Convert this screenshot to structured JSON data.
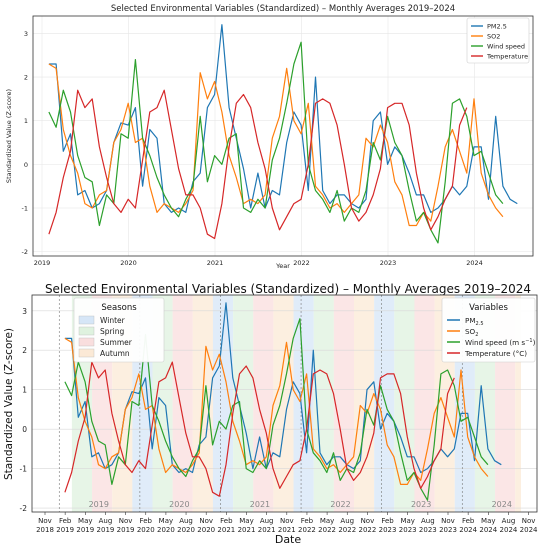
{
  "chart_data": [
    {
      "type": "line",
      "title": "Selected Environmental Variables (Standardized) – Monthly Averages 2019–2024",
      "xlabel": "Year",
      "ylabel": "Standardized Value (Z-score)",
      "x_ticks": [
        "2019",
        "2020",
        "2021",
        "2022",
        "2023",
        "2024"
      ],
      "y_ticks": [
        "-2",
        "-1",
        "0",
        "1",
        "2",
        "3"
      ],
      "ylim": [
        -2.1,
        3.4
      ],
      "x_range_years": [
        2018.92,
        2024.98
      ],
      "grid": true,
      "legend_position": "top-right",
      "legend": [
        "PM2.5",
        "SO2",
        "Wind speed",
        "Temperature"
      ],
      "series": [
        {
          "name": "PM2.5",
          "color": "#1f77b4",
          "x_start": 2019.08,
          "x_step": 0.0833,
          "values": [
            2.3,
            2.3,
            0.3,
            0.7,
            -0.7,
            -0.6,
            -1.0,
            -0.9,
            -0.6,
            0.5,
            0.95,
            0.9,
            1.3,
            -0.5,
            0.8,
            0.6,
            -0.9,
            -1.1,
            -1.0,
            -1.1,
            -0.4,
            -0.2,
            1.3,
            1.6,
            3.2,
            1.3,
            0.6,
            -0.1,
            -1.0,
            -0.2,
            -1.0,
            -0.6,
            -0.7,
            0.5,
            1.2,
            0.9,
            -0.6,
            2.0,
            -0.6,
            -0.9,
            -0.7,
            -0.7,
            -0.9,
            -1.0,
            -0.8,
            1.0,
            1.2,
            0.0,
            0.4,
            0.2,
            -0.2,
            -0.7,
            -0.7,
            -1.1,
            -1.0,
            -0.8,
            -0.5,
            -0.7,
            -0.5,
            0.4,
            0.4,
            -0.8,
            1.1,
            -0.5,
            -0.8,
            -0.9
          ]
        },
        {
          "name": "SO2",
          "color": "#ff7f0e",
          "x_start": 2019.08,
          "x_step": 0.0833,
          "values": [
            2.3,
            2.2,
            0.8,
            0.2,
            -0.2,
            -0.9,
            -1.0,
            -0.7,
            -0.6,
            0.5,
            0.8,
            1.4,
            0.5,
            0.6,
            -0.5,
            -1.1,
            -0.9,
            -1.0,
            -1.1,
            -0.9,
            -0.6,
            2.1,
            1.5,
            1.9,
            1.2,
            0.2,
            -0.3,
            -0.9,
            -0.8,
            -0.9,
            -0.7,
            0.6,
            1.1,
            2.2,
            1.0,
            0.7,
            1.4,
            -0.5,
            -0.7,
            -1.0,
            -0.9,
            -1.1,
            -0.9,
            -0.7,
            0.6,
            0.4,
            0.9,
            0.5,
            -0.4,
            -0.7,
            -1.4,
            -1.4,
            -1.1,
            -1.3,
            -0.5,
            0.4,
            0.8,
            0.3,
            -0.2,
            1.5,
            -0.2,
            -0.7,
            -1.0,
            -1.2
          ]
        },
        {
          "name": "Wind speed",
          "color": "#2ca02c",
          "x_start": 2019.08,
          "x_step": 0.0833,
          "values": [
            1.2,
            0.85,
            1.7,
            1.2,
            0.2,
            -0.3,
            -0.4,
            -1.4,
            -0.7,
            -0.9,
            0.7,
            0.6,
            2.4,
            0.6,
            0.2,
            -0.3,
            -0.7,
            -1.0,
            -1.2,
            -0.8,
            -0.5,
            1.1,
            -0.4,
            0.2,
            0.0,
            0.6,
            0.7,
            -1.0,
            -1.1,
            -0.8,
            -1.0,
            0.1,
            0.6,
            1.4,
            2.3,
            2.8,
            0.0,
            -0.6,
            -0.8,
            -1.1,
            -0.6,
            -1.3,
            -1.0,
            -1.1,
            -0.6,
            0.5,
            0.1,
            1.1,
            0.5,
            0.2,
            -0.6,
            -1.3,
            -1.1,
            -1.5,
            -1.8,
            -0.4,
            1.4,
            1.5,
            1.1,
            0.2,
            0.3,
            -0.2,
            -0.7,
            -0.9
          ]
        },
        {
          "name": "Temperature",
          "color": "#d62728",
          "x_start": 2019.08,
          "x_step": 0.0833,
          "values": [
            -1.6,
            -1.1,
            -0.3,
            0.3,
            1.7,
            1.3,
            1.5,
            0.4,
            -0.3,
            -0.9,
            -1.1,
            -0.8,
            -1.0,
            0.1,
            1.2,
            1.3,
            1.7,
            0.8,
            -0.1,
            -0.7,
            -0.7,
            -1.0,
            -1.6,
            -1.7,
            -0.9,
            0.4,
            1.4,
            1.6,
            1.3,
            0.5,
            -0.1,
            -1.0,
            -1.5,
            -1.2,
            -0.9,
            -0.8,
            0.0,
            1.4,
            1.5,
            1.4,
            0.9,
            0.0,
            -1.0,
            -1.3,
            -1.1,
            -0.7,
            -0.1,
            1.3,
            1.4,
            1.4,
            0.9,
            -0.2,
            -1.0,
            -1.5,
            -1.2,
            -0.8,
            -0.5,
            0.9,
            1.3
          ]
        }
      ]
    },
    {
      "type": "line",
      "title": "Selected Environmental Variables (Standardized) – Monthly Averages 2019–2024",
      "xlabel": "Date",
      "ylabel": "Standardized Value (Z-score)",
      "x_ticks": [
        {
          "top": "Nov",
          "bottom": "2018"
        },
        {
          "top": "Feb",
          "bottom": "2019"
        },
        {
          "top": "May",
          "bottom": "2019"
        },
        {
          "top": "Aug",
          "bottom": "2019"
        },
        {
          "top": "Nov",
          "bottom": "2019"
        },
        {
          "top": "Feb",
          "bottom": "2020"
        },
        {
          "top": "May",
          "bottom": "2020"
        },
        {
          "top": "Aug",
          "bottom": "2020"
        },
        {
          "top": "Nov",
          "bottom": "2020"
        },
        {
          "top": "Feb",
          "bottom": "2021"
        },
        {
          "top": "May",
          "bottom": "2021"
        },
        {
          "top": "Aug",
          "bottom": "2021"
        },
        {
          "top": "Nov",
          "bottom": "2021"
        },
        {
          "top": "Feb",
          "bottom": "2022"
        },
        {
          "top": "May",
          "bottom": "2022"
        },
        {
          "top": "Aug",
          "bottom": "2022"
        },
        {
          "top": "Nov",
          "bottom": "2022"
        },
        {
          "top": "Feb",
          "bottom": "2023"
        },
        {
          "top": "May",
          "bottom": "2023"
        },
        {
          "top": "Aug",
          "bottom": "2023"
        },
        {
          "top": "Nov",
          "bottom": "2023"
        },
        {
          "top": "Feb",
          "bottom": "2024"
        },
        {
          "top": "May",
          "bottom": "2024"
        },
        {
          "top": "Aug",
          "bottom": "2024"
        },
        {
          "top": "Nov",
          "bottom": "2024"
        }
      ],
      "y_ticks": [
        "-2",
        "-1",
        "0",
        "1",
        "2",
        "3"
      ],
      "ylim": [
        -2.1,
        3.4
      ],
      "grid": true,
      "year_labels": [
        "2019",
        "2020",
        "2021",
        "2022",
        "2023",
        "2024"
      ],
      "legend_seasons": {
        "title": "Seasons",
        "position": "top-left",
        "items": [
          {
            "label": "Winter",
            "color": "#d6e6f7"
          },
          {
            "label": "Spring",
            "color": "#dff2df"
          },
          {
            "label": "Summer",
            "color": "#f9dede"
          },
          {
            "label": "Autumn",
            "color": "#fbe9d6"
          }
        ]
      },
      "legend_variables": {
        "title": "Variables",
        "position": "top-right",
        "items": [
          {
            "label": "PM",
            "sub": "2.5",
            "sup": "",
            "suffix": "",
            "color": "#1f77b4"
          },
          {
            "label": "SO",
            "sub": "2",
            "sup": "",
            "suffix": "",
            "color": "#ff7f0e"
          },
          {
            "label": "Wind speed (m s",
            "sub": "",
            "sup": "−1",
            "suffix": ")",
            "color": "#2ca02c"
          },
          {
            "label": "Temperature (°C)",
            "sub": "",
            "sup": "",
            "suffix": "",
            "color": "#d62728"
          }
        ]
      },
      "series_ref": "same values as chart 1"
    }
  ]
}
